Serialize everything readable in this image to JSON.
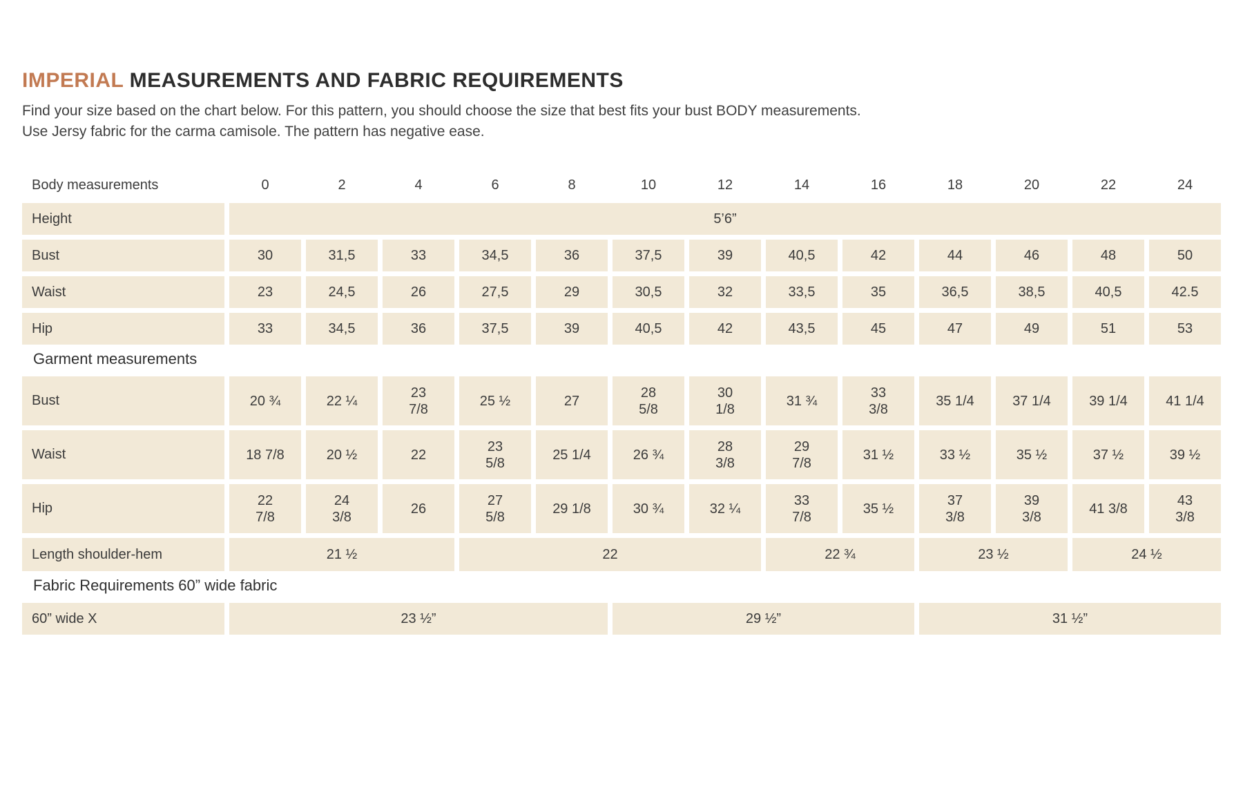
{
  "title": {
    "highlight": "IMPERIAL",
    "rest": " MEASUREMENTS AND FABRIC REQUIREMENTS"
  },
  "intro": {
    "line1": "Find your size based on the chart below. For this pattern, you should choose the size that best fits your bust BODY measurements.",
    "line2": "Use Jersy fabric for the carma camisole. The pattern has negative ease."
  },
  "colors": {
    "accent": "#c27a52",
    "cell_background": "#f2e9d7",
    "text": "#3b3b3b"
  },
  "table": {
    "header": {
      "label": "Body measurements",
      "sizes": [
        "0",
        "2",
        "4",
        "6",
        "8",
        "10",
        "12",
        "14",
        "16",
        "18",
        "20",
        "22",
        "24"
      ]
    },
    "height_row": {
      "label": "Height",
      "value": "5’6”"
    },
    "bust_row": {
      "label": "Bust",
      "values": [
        "30",
        "31,5",
        "33",
        "34,5",
        "36",
        "37,5",
        "39",
        "40,5",
        "42",
        "44",
        "46",
        "48",
        "50"
      ]
    },
    "waist_row": {
      "label": "Waist",
      "values": [
        "23",
        "24,5",
        "26",
        "27,5",
        "29",
        "30,5",
        "32",
        "33,5",
        "35",
        "36,5",
        "38,5",
        "40,5",
        "42.5"
      ]
    },
    "hip_row": {
      "label": "Hip",
      "values": [
        "33",
        "34,5",
        "36",
        "37,5",
        "39",
        "40,5",
        "42",
        "43,5",
        "45",
        "47",
        "49",
        "51",
        "53"
      ]
    }
  },
  "garment": {
    "title": "Garment measurements",
    "bust_row": {
      "label": "Bust",
      "values": [
        "20 ¾",
        "22 ¼",
        "23\n7/8",
        "25 ½",
        "27",
        "28\n5/8",
        "30\n1/8",
        "31 ¾",
        "33\n3/8",
        "35 1/4",
        "37 1/4",
        "39 1/4",
        "41 1/4"
      ]
    },
    "waist_row": {
      "label": "Waist",
      "values": [
        "18 7/8",
        "20 ½",
        "22",
        "23\n5/8",
        "25 1/4",
        "26 ¾",
        "28\n3/8",
        "29\n7/8",
        "31 ½",
        "33 ½",
        "35 ½",
        "37 ½",
        "39 ½"
      ]
    },
    "hip_row": {
      "label": "Hip",
      "values": [
        "22\n7/8",
        "24\n3/8",
        "26",
        "27\n5/8",
        "29 1/8",
        "30 ¾",
        "32 ¼",
        "33\n7/8",
        "35 ½",
        "37\n3/8",
        "39\n3/8",
        "41 3/8",
        "43\n3/8"
      ]
    },
    "length_row": {
      "label": "Length shoulder-hem",
      "cells": [
        {
          "span": 3,
          "value": "21 ½"
        },
        {
          "span": 4,
          "value": "22"
        },
        {
          "span": 2,
          "value": "22 ¾"
        },
        {
          "span": 2,
          "value": "23 ½"
        },
        {
          "span": 2,
          "value": "24 ½"
        }
      ]
    }
  },
  "fabric": {
    "title": "Fabric Requirements 60” wide fabric",
    "row": {
      "label": "60” wide X",
      "cells": [
        {
          "span": 5,
          "value": "23 ½”"
        },
        {
          "span": 4,
          "value": "29 ½”"
        },
        {
          "span": 4,
          "value": "31 ½”"
        }
      ]
    }
  }
}
